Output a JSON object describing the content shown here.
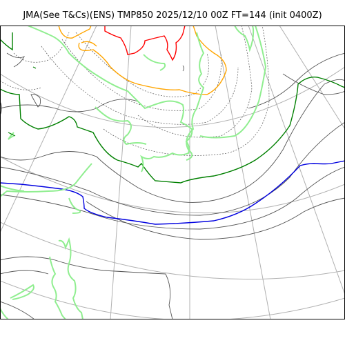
{
  "header": {
    "title": "JMA(See T&Cs)(ENS) TMP850 2025/12/10 00Z FT=144 (init 0400Z)"
  },
  "map": {
    "colors": {
      "coast": "#90ee90",
      "graticule": "#b0b0b0",
      "isotherm_minor": "#555555",
      "isotherm_zero": "#008000",
      "isotherm_blue": "#0000e0",
      "isotherm_orange": "#ffa500",
      "isotherm_red": "#ff0000",
      "frame": "#000000"
    }
  }
}
